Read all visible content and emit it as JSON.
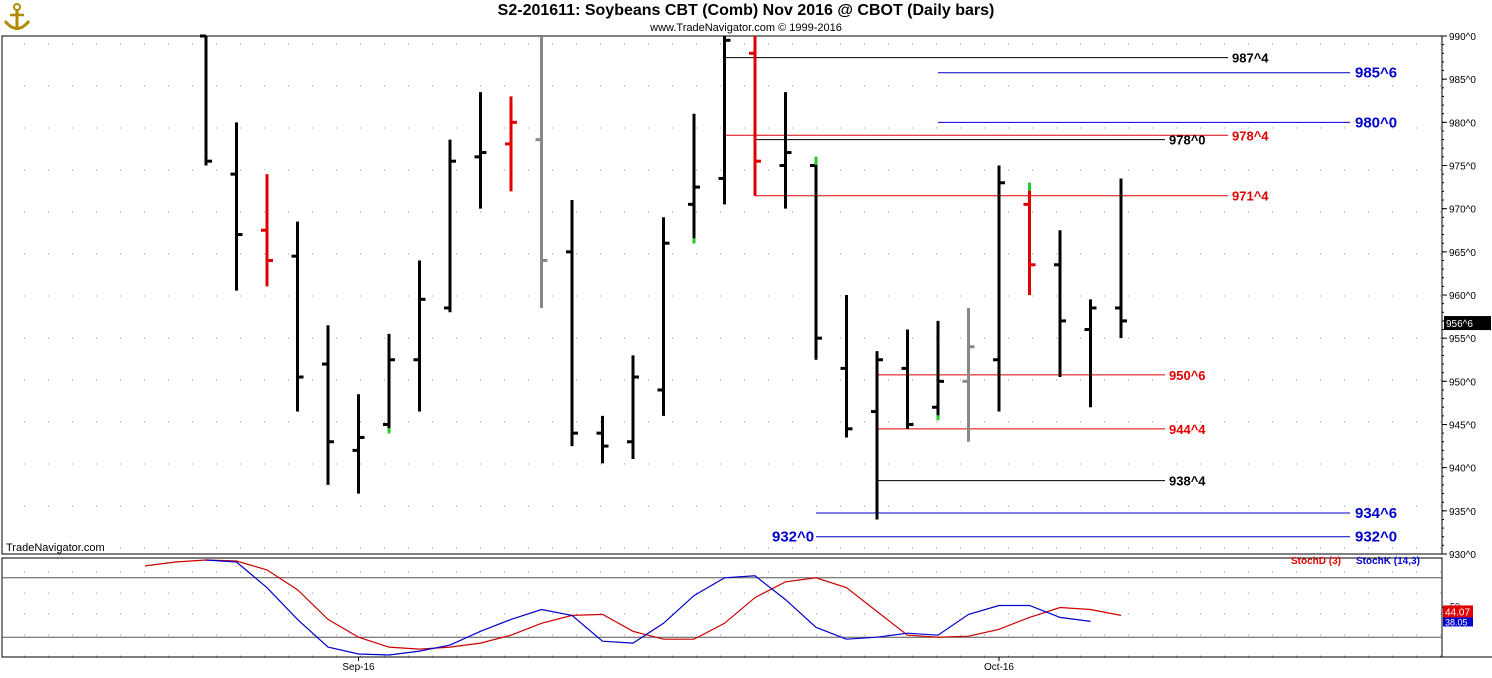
{
  "header": {
    "title": "S2-201611:  Soybeans CBT (Comb) Nov 2016 @ CBOT  (Daily bars)",
    "subtitle": "www.TradeNavigator.com © 1999-2016"
  },
  "watermark": "TradeNavigator.com",
  "colors": {
    "up": "#000000",
    "down": "#e00000",
    "neutral": "#888888",
    "marker": "#22cc22",
    "level_black": "#000000",
    "level_red": "#e00000",
    "level_blue": "#0000cc",
    "stoch_d": "#cc0000",
    "stoch_k": "#0000cc",
    "current_bg": "#000000",
    "stoch_d_bg": "#e00000",
    "stoch_k_bg": "#0000cc"
  },
  "chart_data": {
    "type": "ohlc",
    "price_axis": {
      "min": 930,
      "max": 990,
      "ticks": [
        {
          "v": 990,
          "label": "990^0"
        },
        {
          "v": 985,
          "label": "985^0"
        },
        {
          "v": 980,
          "label": "980^0"
        },
        {
          "v": 975,
          "label": "975^0"
        },
        {
          "v": 970,
          "label": "970^0"
        },
        {
          "v": 965,
          "label": "965^0"
        },
        {
          "v": 960,
          "label": "960^0"
        },
        {
          "v": 955,
          "label": "955^0"
        },
        {
          "v": 950,
          "label": "950^0"
        },
        {
          "v": 945,
          "label": "945^0"
        },
        {
          "v": 940,
          "label": "940^0"
        },
        {
          "v": 935,
          "label": "935^0"
        },
        {
          "v": 930,
          "label": "930^0"
        }
      ],
      "current": {
        "v": 956.75,
        "label": "956^6"
      }
    },
    "x_labels": [
      {
        "bar": 5,
        "label": "Sep-16"
      },
      {
        "bar": 26,
        "label": "Oct-16"
      }
    ],
    "bars": [
      {
        "o": 993.0,
        "h": 990.0,
        "l": 975.0,
        "c": 975.5,
        "color": "up"
      },
      {
        "o": 974.0,
        "h": 980.0,
        "l": 960.5,
        "c": 967.0,
        "color": "up"
      },
      {
        "o": 967.5,
        "h": 974.0,
        "l": 961.0,
        "c": 964.0,
        "color": "down"
      },
      {
        "o": 964.5,
        "h": 968.5,
        "l": 946.5,
        "c": 950.5,
        "color": "up"
      },
      {
        "o": 952.0,
        "h": 956.5,
        "l": 938.0,
        "c": 943.0,
        "color": "up"
      },
      {
        "o": 942.0,
        "h": 948.5,
        "l": 937.0,
        "c": 943.5,
        "color": "up"
      },
      {
        "o": 945.0,
        "h": 955.5,
        "l": 944.0,
        "c": 952.5,
        "color": "up",
        "marker": "low"
      },
      {
        "o": 952.5,
        "h": 964.0,
        "l": 946.5,
        "c": 959.5,
        "color": "up"
      },
      {
        "o": 958.5,
        "h": 978.0,
        "l": 958.0,
        "c": 975.5,
        "color": "up"
      },
      {
        "o": 976.0,
        "h": 983.5,
        "l": 970.0,
        "c": 976.5,
        "color": "up"
      },
      {
        "o": 977.5,
        "h": 983.0,
        "l": 972.0,
        "c": 980.0,
        "color": "down"
      },
      {
        "o": 978.0,
        "h": 990.0,
        "l": 958.5,
        "c": 964.0,
        "color": "neutral"
      },
      {
        "o": 965.0,
        "h": 971.0,
        "l": 942.5,
        "c": 944.0,
        "color": "up"
      },
      {
        "o": 944.0,
        "h": 946.0,
        "l": 940.5,
        "c": 942.5,
        "color": "up"
      },
      {
        "o": 943.0,
        "h": 953.0,
        "l": 941.0,
        "c": 950.5,
        "color": "up"
      },
      {
        "o": 949.0,
        "h": 969.0,
        "l": 946.0,
        "c": 966.0,
        "color": "up"
      },
      {
        "o": 970.5,
        "h": 981.0,
        "l": 966.0,
        "c": 972.5,
        "color": "up",
        "marker": "low"
      },
      {
        "o": 973.5,
        "h": 990.0,
        "l": 970.5,
        "c": 989.5,
        "color": "up"
      },
      {
        "o": 988.0,
        "h": 990.0,
        "l": 971.5,
        "c": 975.5,
        "color": "down"
      },
      {
        "o": 975.0,
        "h": 983.5,
        "l": 970.0,
        "c": 976.5,
        "color": "up"
      },
      {
        "o": 975.0,
        "h": 976.0,
        "l": 952.5,
        "c": 955.0,
        "color": "up",
        "marker": "high"
      },
      {
        "o": 951.5,
        "h": 960.0,
        "l": 943.5,
        "c": 944.5,
        "color": "up"
      },
      {
        "o": 946.5,
        "h": 953.5,
        "l": 934.0,
        "c": 952.5,
        "color": "up"
      },
      {
        "o": 951.5,
        "h": 956.0,
        "l": 944.5,
        "c": 945.0,
        "color": "up"
      },
      {
        "o": 947.0,
        "h": 957.0,
        "l": 945.5,
        "c": 950.0,
        "color": "up",
        "marker": "low"
      },
      {
        "o": 950.0,
        "h": 958.5,
        "l": 943.0,
        "c": 954.0,
        "color": "neutral"
      },
      {
        "o": 952.5,
        "h": 975.0,
        "l": 946.5,
        "c": 973.0,
        "color": "up"
      },
      {
        "o": 970.5,
        "h": 973.0,
        "l": 960.0,
        "c": 963.5,
        "color": "down",
        "marker": "high"
      },
      {
        "o": 963.5,
        "h": 967.5,
        "l": 950.5,
        "c": 957.0,
        "color": "up"
      },
      {
        "o": 956.0,
        "h": 959.5,
        "l": 947.0,
        "c": 958.5,
        "color": "up"
      },
      {
        "o": 958.5,
        "h": 973.5,
        "l": 955.0,
        "c": 957.0,
        "color": "up"
      }
    ],
    "levels": [
      {
        "v": 987.5,
        "label": "987^4",
        "color": "level_black",
        "from_bar": 17,
        "label_pos": "right"
      },
      {
        "v": 985.75,
        "label": "985^6",
        "color": "level_blue",
        "from_bar": 24,
        "label_pos": "far"
      },
      {
        "v": 980.0,
        "label": "980^0",
        "color": "level_blue",
        "from_bar": 24,
        "label_pos": "far"
      },
      {
        "v": 978.5,
        "label": "978^4",
        "color": "level_red",
        "from_bar": 17,
        "label_pos": "right"
      },
      {
        "v": 978.0,
        "label": "978^0",
        "color": "level_black",
        "from_bar": 18,
        "label_pos": "mid"
      },
      {
        "v": 971.5,
        "label": "971^4",
        "color": "level_red",
        "from_bar": 18,
        "label_pos": "right"
      },
      {
        "v": 950.75,
        "label": "950^6",
        "color": "level_red",
        "from_bar": 22,
        "label_pos": "mid"
      },
      {
        "v": 944.5,
        "label": "944^4",
        "color": "level_red",
        "from_bar": 22,
        "label_pos": "mid"
      },
      {
        "v": 938.5,
        "label": "938^4",
        "color": "level_black",
        "from_bar": 22,
        "label_pos": "mid"
      },
      {
        "v": 934.75,
        "label": "934^6",
        "color": "level_blue",
        "from_bar": 20,
        "label_pos": "far"
      },
      {
        "v": 932.0,
        "label": "932^0",
        "color": "level_blue",
        "from_bar": 20,
        "label_pos": "far",
        "left_label": "932^0"
      }
    ],
    "stochastic": {
      "min": 0,
      "max": 100,
      "levels": [
        80,
        50,
        20
      ],
      "level_tick_label": "50",
      "d_label": "StochD (3)",
      "k_label": "StochK (14,3)",
      "d_value": "44.07",
      "k_value": "38.05",
      "x": [
        -4,
        -3,
        -2,
        -1,
        0,
        1,
        2,
        3,
        4,
        5,
        6,
        7,
        8,
        9,
        10,
        11,
        12,
        13,
        14,
        15,
        16,
        17,
        18,
        19,
        20,
        21,
        22,
        23,
        24,
        25,
        26,
        27,
        28,
        29,
        30
      ],
      "d": [
        null,
        null,
        92,
        96,
        98,
        97,
        88,
        68,
        38,
        20,
        10,
        8,
        10,
        14,
        22,
        34,
        42,
        43,
        26,
        18,
        18,
        34,
        60,
        76,
        80,
        70,
        46,
        22,
        20,
        21,
        28,
        40,
        50,
        48,
        42
      ],
      "k": [
        null,
        null,
        null,
        null,
        98,
        96,
        70,
        38,
        10,
        3,
        2,
        6,
        12,
        26,
        38,
        48,
        42,
        16,
        14,
        34,
        62,
        80,
        82,
        58,
        30,
        18,
        20,
        24,
        22,
        43,
        52,
        52,
        40,
        36,
        null
      ]
    }
  }
}
